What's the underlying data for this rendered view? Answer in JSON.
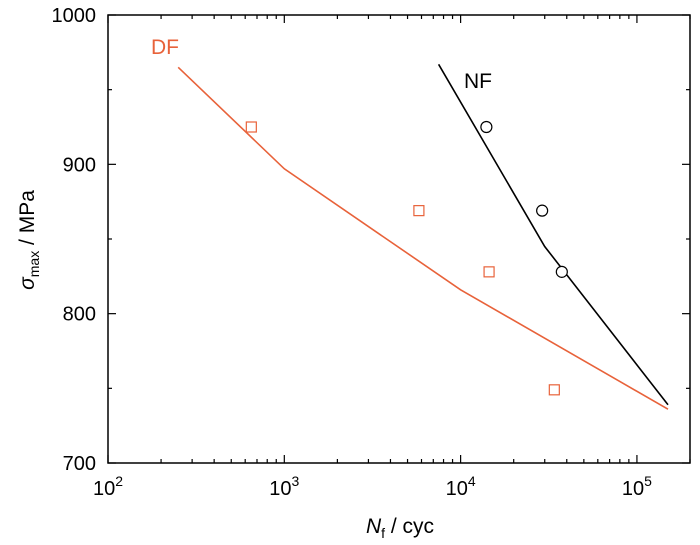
{
  "chart_data": {
    "type": "scatter",
    "x_scale": "log",
    "xlim": [
      100,
      200000
    ],
    "ylim": [
      700,
      1000
    ],
    "x_ticks": [
      {
        "value": 100,
        "base": "10",
        "exp": "2"
      },
      {
        "value": 1000,
        "base": "10",
        "exp": "3"
      },
      {
        "value": 10000,
        "base": "10",
        "exp": "4"
      },
      {
        "value": 100000,
        "base": "10",
        "exp": "5"
      }
    ],
    "y_ticks": [
      {
        "value": 700,
        "label": "700"
      },
      {
        "value": 800,
        "label": "800"
      },
      {
        "value": 900,
        "label": "900"
      },
      {
        "value": 1000,
        "label": "1000"
      }
    ],
    "xlabel": {
      "main": "N",
      "sub": "f",
      "rest": " / cyc"
    },
    "ylabel": {
      "main": "σ",
      "sub": "max",
      "rest": " / MPa"
    },
    "grid": false,
    "series": [
      {
        "name": "DF",
        "color": "#e8623a",
        "marker": "square",
        "points": [
          {
            "x": 650,
            "y": 925
          },
          {
            "x": 5800,
            "y": 869
          },
          {
            "x": 14500,
            "y": 828
          },
          {
            "x": 34000,
            "y": 749
          }
        ],
        "fit": [
          {
            "x": 250,
            "y": 965
          },
          {
            "x": 1000,
            "y": 897
          },
          {
            "x": 10000,
            "y": 816
          },
          {
            "x": 150000,
            "y": 736
          }
        ]
      },
      {
        "name": "NF",
        "color": "#000000",
        "marker": "circle",
        "points": [
          {
            "x": 14000,
            "y": 925
          },
          {
            "x": 29000,
            "y": 869
          },
          {
            "x": 37500,
            "y": 828
          }
        ],
        "fit": [
          {
            "x": 7500,
            "y": 967
          },
          {
            "x": 30000,
            "y": 845
          },
          {
            "x": 150000,
            "y": 739
          }
        ]
      }
    ]
  }
}
